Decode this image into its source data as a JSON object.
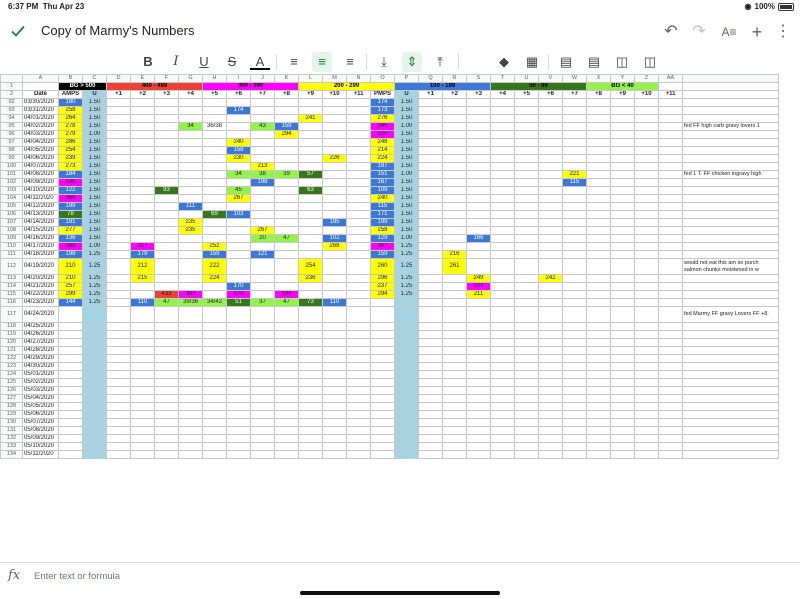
{
  "status": {
    "time": "6:37 PM",
    "date": "Thu Apr 23",
    "battery": "100%"
  },
  "app": {
    "title": "Copy of Marmy's Numbers"
  },
  "formula_bar": {
    "placeholder": "Enter text or formula",
    "fx_label": "fx"
  },
  "icons": [
    "check-icon",
    "undo-icon",
    "redo-icon",
    "text-format-icon",
    "add-icon",
    "more-icon",
    "bold-icon",
    "italic-icon",
    "underline-icon",
    "strikethrough-icon",
    "text-color-icon",
    "align-left-icon",
    "align-center-icon",
    "align-right-icon",
    "valign-bottom-icon",
    "valign-middle-icon",
    "valign-top-icon",
    "fill-color-icon",
    "borders-icon",
    "insert-row-above-icon",
    "insert-row-below-icon",
    "insert-column-left-icon",
    "insert-column-right-icon"
  ],
  "colors": {
    "red": "#ea4335",
    "magenta": "#ff00ff",
    "yellow": "#ffff00",
    "blue": "#3c78d8",
    "green": "#6aa84f",
    "dkgreen": "#38761d",
    "lime": "#93f34b",
    "ltblue": "#a4d3e4",
    "black": "#000000",
    "accent": "#188038"
  },
  "columns": [
    "A",
    "B",
    "C",
    "D",
    "E",
    "F",
    "G",
    "H",
    "I",
    "J",
    "K",
    "L",
    "M",
    "N",
    "O",
    "P",
    "Q",
    "R",
    "S",
    "T",
    "U",
    "V",
    "W",
    "X",
    "Y",
    "Z",
    "AA",
    ""
  ],
  "bands": [
    {
      "label": "BG > 500",
      "bg": "black",
      "fg": "#ffffff"
    },
    {
      "label": "400 - 499",
      "bg": "red",
      "fg": "#000000"
    },
    {
      "label": "300 - 399",
      "bg": "magenta",
      "fg": "#000000"
    },
    {
      "label": "200 - 299",
      "bg": "yellow",
      "fg": "#000000"
    },
    {
      "label": "100 - 199",
      "bg": "blue",
      "fg": "#000000"
    },
    {
      "label": "50 - 99",
      "bg": "dkgreen",
      "fg": "#000000"
    },
    {
      "label": "BG < 40",
      "bg": "lime",
      "fg": "#000000"
    }
  ],
  "header_row": [
    "Date",
    "AMPS",
    "U",
    "+1",
    "+2",
    "+3",
    "+4",
    "+5",
    "+6",
    "+7",
    "+8",
    "+9",
    "+10",
    "+11",
    "PMPS",
    "U",
    "+1",
    "+2",
    "+3",
    "+4",
    "+5",
    "+6",
    "+7",
    "+8",
    "+9",
    "+10",
    "+11",
    ""
  ],
  "rows": [
    {
      "n": "92",
      "d": "03/30/2020",
      "c": {
        "B": [
          "180",
          "blue"
        ],
        "O": [
          "174",
          "blue"
        ]
      },
      "u": "1.50",
      "u2": "1.50"
    },
    {
      "n": "93",
      "d": "03/31/2020",
      "c": {
        "B": [
          "258",
          "yellow"
        ],
        "I": [
          "174",
          "blue"
        ],
        "O": [
          "173",
          "blue"
        ]
      },
      "u": "1.50",
      "u2": "1.50"
    },
    {
      "n": "94",
      "d": "04/01/2020",
      "c": {
        "B": [
          "264",
          "yellow"
        ],
        "L": [
          "241",
          "yellow"
        ],
        "O": [
          "276",
          "yellow"
        ]
      },
      "u": "1.50",
      "u2": "1.50"
    },
    {
      "n": "95",
      "d": "04/02/2020",
      "c": {
        "B": [
          "278",
          "yellow"
        ],
        "G": [
          "34",
          "lime"
        ],
        "H": [
          "36/38",
          ""
        ],
        "J": [
          "43",
          "lime"
        ],
        "K": [
          "159",
          "blue"
        ],
        "O": [
          "345",
          "magenta"
        ]
      },
      "u": "1.50",
      "u2": "1.00",
      "note": "fed FF high carb gravy lovers 1"
    },
    {
      "n": "96",
      "d": "04/03/2020",
      "c": {
        "B": [
          "279",
          "yellow"
        ],
        "K": [
          "294",
          "yellow"
        ],
        "O": [
          "329",
          "magenta"
        ]
      },
      "u": "1.00",
      "u2": "1.50"
    },
    {
      "n": "97",
      "d": "04/04/2020",
      "c": {
        "B": [
          "286",
          "yellow"
        ],
        "I": [
          "240",
          "yellow"
        ],
        "O": [
          "248",
          "yellow"
        ]
      },
      "u": "1.50",
      "u2": "1.50"
    },
    {
      "n": "98",
      "d": "04/05/2020",
      "c": {
        "B": [
          "254",
          "yellow"
        ],
        "I": [
          "158",
          "blue"
        ],
        "O": [
          "214",
          "yellow"
        ]
      },
      "u": "1.50",
      "u2": "1.50"
    },
    {
      "n": "99",
      "d": "04/06/2020",
      "c": {
        "B": [
          "239",
          "yellow"
        ],
        "I": [
          "230",
          "yellow"
        ],
        "M": [
          "226",
          "yellow"
        ],
        "O": [
          "224",
          "yellow"
        ]
      },
      "u": "1.50",
      "u2": "1.50"
    },
    {
      "n": "100",
      "d": "04/07/2020",
      "c": {
        "B": [
          "273",
          "yellow"
        ],
        "J": [
          "213",
          "yellow"
        ],
        "O": [
          "197",
          "blue"
        ]
      },
      "u": "1.50",
      "u2": "1.50"
    },
    {
      "n": "101",
      "d": "04/08/2020",
      "c": {
        "B": [
          "184",
          "blue"
        ],
        "I": [
          "34",
          "lime"
        ],
        "J": [
          "38",
          "lime"
        ],
        "K": [
          "39",
          "lime"
        ],
        "L": [
          "57",
          "dkgreen"
        ],
        "O": [
          "151",
          "blue"
        ],
        "W": [
          "221",
          "yellow"
        ]
      },
      "u": "1.50",
      "u2": "1.00",
      "note": "fed 1 T. FF chicken ingravy high"
    },
    {
      "n": "102",
      "d": "04/09/2020",
      "c": {
        "B": [
          "330",
          "magenta"
        ],
        "J": [
          "198",
          "blue"
        ],
        "O": [
          "167",
          "blue"
        ],
        "W": [
          "115",
          "blue"
        ]
      },
      "u": "1.50",
      "u2": "1.50"
    },
    {
      "n": "103",
      "d": "04/10/2020",
      "c": {
        "B": [
          "122",
          "blue"
        ],
        "F": [
          "93",
          "dkgreen"
        ],
        "I": [
          "45",
          "lime"
        ],
        "L": [
          "63",
          "dkgreen"
        ],
        "O": [
          "109",
          "blue"
        ]
      },
      "u": "1.50",
      "u2": "1.50"
    },
    {
      "n": "104",
      "d": "04/11/2020",
      "c": {
        "B": [
          "369",
          "magenta"
        ],
        "I": [
          "267",
          "yellow"
        ],
        "O": [
          "240",
          "yellow"
        ]
      },
      "u": "1.50",
      "u2": "1.50"
    },
    {
      "n": "105",
      "d": "04/12/2020",
      "c": {
        "B": [
          "199",
          "blue"
        ],
        "G": [
          "111",
          "blue"
        ],
        "O": [
          "115",
          "blue"
        ]
      },
      "u": "1.50",
      "u2": "1.50"
    },
    {
      "n": "106",
      "d": "04/13/2020",
      "c": {
        "B": [
          "78",
          "dkgreen"
        ],
        "H": [
          "69",
          "dkgreen"
        ],
        "I": [
          "103",
          "blue"
        ],
        "O": [
          "171",
          "blue"
        ]
      },
      "u": "1.50",
      "u2": "1.50"
    },
    {
      "n": "107",
      "d": "04/14/2020",
      "c": {
        "B": [
          "191",
          "blue"
        ],
        "G": [
          "235",
          "yellow"
        ],
        "M": [
          "195",
          "blue"
        ],
        "O": [
          "199",
          "blue"
        ]
      },
      "u": "1.50",
      "u2": "1.50"
    },
    {
      "n": "108",
      "d": "04/15/2020",
      "c": {
        "B": [
          "277",
          "yellow"
        ],
        "G": [
          "235",
          "yellow"
        ],
        "J": [
          "267",
          "yellow"
        ],
        "O": [
          "258",
          "yellow"
        ]
      },
      "u": "1.50",
      "u2": "1.50"
    },
    {
      "n": "109",
      "d": "04/16/2020",
      "c": {
        "B": [
          "136",
          "blue"
        ],
        "J": [
          "20",
          "lime"
        ],
        "K": [
          "47",
          "lime"
        ],
        "M": [
          "102",
          "blue"
        ],
        "O": [
          "129",
          "blue"
        ],
        "S": [
          "166",
          "blue"
        ]
      },
      "u": "1.50",
      "u2": "1.00"
    },
    {
      "n": "110",
      "d": "04/17/2020",
      "c": {
        "B": [
          "398",
          "magenta"
        ],
        "E": [
          "317",
          "magenta"
        ],
        "H": [
          "252",
          "yellow"
        ],
        "M": [
          "268",
          "yellow"
        ],
        "O": [
          "307",
          "magenta"
        ]
      },
      "u": "1.00",
      "u2": "1.25"
    },
    {
      "n": "111",
      "d": "04/18/2020",
      "c": {
        "B": [
          "198",
          "blue"
        ],
        "E": [
          "179",
          "blue"
        ],
        "H": [
          "159",
          "blue"
        ],
        "J": [
          "121",
          "blue"
        ],
        "O": [
          "159",
          "blue"
        ],
        "R": [
          "216",
          "yellow"
        ]
      },
      "u": "1.25",
      "u2": "1.25"
    },
    {
      "n": "112",
      "d": "04/19/2020",
      "tall": true,
      "c": {
        "B": [
          "210",
          "yellow"
        ],
        "E": [
          "212",
          "yellow"
        ],
        "H": [
          "222",
          "yellow"
        ],
        "L": [
          "254",
          "yellow"
        ],
        "O": [
          "260",
          "yellow"
        ],
        "R": [
          "261",
          "yellow"
        ]
      },
      "u": "1.25",
      "u2": "1.25",
      "note": "would not eat this am so purch salmon chunks moistened in w"
    },
    {
      "n": "113",
      "d": "04/20/2020",
      "c": {
        "B": [
          "210",
          "yellow"
        ],
        "E": [
          "215",
          "yellow"
        ],
        "H": [
          "224",
          "yellow"
        ],
        "L": [
          "236",
          "yellow"
        ],
        "O": [
          "296",
          "yellow"
        ],
        "S": [
          "249",
          "yellow"
        ],
        "V": [
          "242",
          "yellow"
        ]
      },
      "u": "1.25",
      "u2": "1.25"
    },
    {
      "n": "114",
      "d": "04/21/2020",
      "c": {
        "B": [
          "257",
          "yellow"
        ],
        "I": [
          "170",
          "blue"
        ],
        "O": [
          "237",
          "yellow"
        ],
        "S": [
          "323",
          "magenta"
        ]
      },
      "u": "1.25",
      "u2": "1.25"
    },
    {
      "n": "115",
      "d": "04/22/2020",
      "c": {
        "B": [
          "299",
          "yellow"
        ],
        "F": [
          "433",
          "red"
        ],
        "G": [
          "383",
          "magenta"
        ],
        "I": [
          "373",
          "magenta"
        ],
        "K": [
          "334",
          "magenta"
        ],
        "O": [
          "294",
          "yellow"
        ],
        "S": [
          "211",
          "yellow"
        ]
      },
      "u": "1.25",
      "u2": "1.25"
    },
    {
      "n": "116",
      "d": "04/23/2020",
      "c": {
        "B": [
          "144",
          "blue"
        ],
        "E": [
          "110",
          "blue"
        ],
        "F": [
          "47",
          "lime"
        ],
        "G": [
          "39/36",
          "lime"
        ],
        "H": [
          "34/42",
          "lime"
        ],
        "I": [
          "51",
          "dkgreen"
        ],
        "J": [
          "37",
          "lime"
        ],
        "K": [
          "47",
          "lime"
        ],
        "L": [
          "73",
          "dkgreen"
        ],
        "M": [
          "110",
          "blue"
        ]
      },
      "u": "1.25",
      "u2": ""
    },
    {
      "n": "117",
      "d": "04/24/2020",
      "tall": true,
      "c": {},
      "u": "",
      "u2": "",
      "note": "fed Marmy FF gravy Lovers FF +8."
    },
    {
      "n": "118",
      "d": "04/25/2020",
      "c": {},
      "u": "",
      "u2": ""
    },
    {
      "n": "119",
      "d": "04/26/2020",
      "c": {},
      "u": "",
      "u2": ""
    },
    {
      "n": "120",
      "d": "04/27/2020",
      "c": {},
      "u": "",
      "u2": ""
    },
    {
      "n": "121",
      "d": "04/28/2020",
      "c": {},
      "u": "",
      "u2": ""
    },
    {
      "n": "122",
      "d": "04/29/2020",
      "c": {},
      "u": "",
      "u2": ""
    },
    {
      "n": "123",
      "d": "04/30/2020",
      "c": {},
      "u": "",
      "u2": ""
    },
    {
      "n": "124",
      "d": "05/01/2020",
      "c": {},
      "u": "",
      "u2": ""
    },
    {
      "n": "125",
      "d": "05/02/2020",
      "c": {},
      "u": "",
      "u2": ""
    },
    {
      "n": "126",
      "d": "05/03/2020",
      "c": {},
      "u": "",
      "u2": ""
    },
    {
      "n": "127",
      "d": "05/04/2020",
      "c": {},
      "u": "",
      "u2": ""
    },
    {
      "n": "128",
      "d": "05/05/2020",
      "c": {},
      "u": "",
      "u2": ""
    },
    {
      "n": "129",
      "d": "05/06/2020",
      "c": {},
      "u": "",
      "u2": ""
    },
    {
      "n": "130",
      "d": "05/07/2020",
      "c": {},
      "u": "",
      "u2": ""
    },
    {
      "n": "131",
      "d": "05/08/2020",
      "c": {},
      "u": "",
      "u2": ""
    },
    {
      "n": "132",
      "d": "05/09/2020",
      "c": {},
      "u": "",
      "u2": ""
    },
    {
      "n": "133",
      "d": "05/10/2020",
      "c": {},
      "u": "",
      "u2": ""
    },
    {
      "n": "134",
      "d": "05/11/2020",
      "c": {},
      "u": "",
      "u2": ""
    }
  ]
}
